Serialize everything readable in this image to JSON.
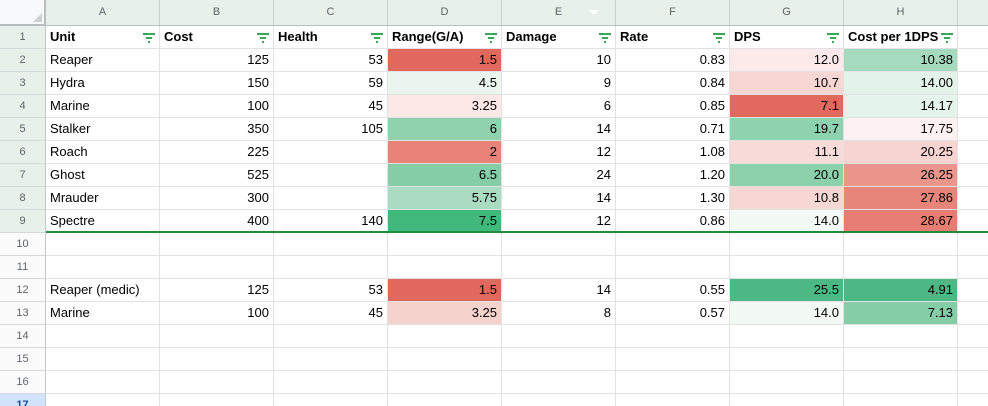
{
  "sheet": {
    "column_letters": [
      "A",
      "B",
      "C",
      "D",
      "E",
      "F",
      "G",
      "H"
    ],
    "row_numbers": [
      1,
      2,
      3,
      4,
      5,
      6,
      7,
      8,
      9,
      10,
      11,
      12,
      13,
      14,
      15,
      16,
      17
    ],
    "filter_range_last_row": 9,
    "active_row": 17,
    "column_with_dropdown": "E",
    "header_labels": [
      "Unit",
      "Cost",
      "Health",
      "Range(G/A)",
      "Damage",
      "Rate",
      "DPS",
      "Cost per 1DPS"
    ],
    "data_rows": [
      {
        "row": 2,
        "cells": {
          "A": "Reaper",
          "B": "125",
          "C": "53",
          "D": "1.5",
          "E": "10",
          "F": "0.83",
          "G": "12.0",
          "H": "10.38"
        },
        "bg": {
          "D": "#e1685c",
          "G": "#fbeae9",
          "H": "#a5dabe"
        }
      },
      {
        "row": 3,
        "cells": {
          "A": "Hydra",
          "B": "150",
          "C": "59",
          "D": "4.5",
          "E": "9",
          "F": "0.84",
          "G": "10.7",
          "H": "14.00"
        },
        "bg": {
          "D": "#e9f5ee",
          "G": "#f7d6d3",
          "H": "#e3f3ea"
        }
      },
      {
        "row": 4,
        "cells": {
          "A": "Marine",
          "B": "100",
          "C": "45",
          "D": "3.25",
          "E": "6",
          "F": "0.85",
          "G": "7.1",
          "H": "14.17"
        },
        "bg": {
          "D": "#fce8e6",
          "G": "#e1695e",
          "H": "#e4f3eb"
        }
      },
      {
        "row": 5,
        "cells": {
          "A": "Stalker",
          "B": "350",
          "C": "105",
          "D": "6",
          "E": "14",
          "F": "0.71",
          "G": "19.7",
          "H": "17.75"
        },
        "bg": {
          "D": "#90d1ae",
          "G": "#8fd2af",
          "H": "#fdf2f1"
        }
      },
      {
        "row": 6,
        "cells": {
          "A": "Roach",
          "B": "225",
          "C": "",
          "D": "2",
          "E": "12",
          "F": "1.08",
          "G": "11.1",
          "H": "20.25"
        },
        "bg": {
          "D": "#e98379",
          "G": "#f8dbd8",
          "H": "#f7d4d0"
        }
      },
      {
        "row": 7,
        "cells": {
          "A": "Ghost",
          "B": "525",
          "C": "",
          "D": "6.5",
          "E": "24",
          "F": "1.20",
          "G": "20.0",
          "H": "26.25"
        },
        "bg": {
          "D": "#85cda6",
          "G": "#8cd1ac",
          "H": "#ea968d"
        }
      },
      {
        "row": 8,
        "cells": {
          "A": "Mrauder",
          "B": "300",
          "C": "",
          "D": "5.75",
          "E": "14",
          "F": "1.30",
          "G": "10.8",
          "H": "27.86"
        },
        "bg": {
          "D": "#aadcc2",
          "G": "#f7d7d4",
          "H": "#e8857b"
        }
      },
      {
        "row": 9,
        "cells": {
          "A": "Spectre",
          "B": "400",
          "C": "140",
          "D": "7.5",
          "E": "12",
          "F": "0.86",
          "G": "14.0",
          "H": "28.67"
        },
        "bg": {
          "D": "#41b87c",
          "G": "#f3faf6",
          "H": "#e67c72"
        }
      },
      {
        "row": 12,
        "cells": {
          "A": "Reaper (medic)",
          "B": "125",
          "C": "53",
          "D": "1.5",
          "E": "14",
          "F": "0.55",
          "G": "25.5",
          "H": "4.91"
        },
        "bg": {
          "D": "#e1685c",
          "G": "#4cb984",
          "H": "#4cb984"
        }
      },
      {
        "row": 13,
        "cells": {
          "A": "Marine",
          "B": "100",
          "C": "45",
          "D": "3.25",
          "E": "8",
          "F": "0.57",
          "G": "14.0",
          "H": "7.13"
        },
        "bg": {
          "D": "#f6d2cd",
          "G": "#f2f9f5",
          "H": "#84cda7"
        }
      }
    ],
    "icons": {
      "header_filter": "filter-funnel",
      "column_dropdown": "chevron-down"
    },
    "colors": {
      "filter_icon_green": "#34a853",
      "filter_boundary_green": "#1e8e3e",
      "filter_header_tint": "#e7f1ea",
      "active_row_header": "#d2e3fc",
      "active_row_number": "#174ea6",
      "gridline": "#e2e2e2",
      "scale_red": "#e1685c",
      "scale_green": "#41b87c"
    }
  }
}
